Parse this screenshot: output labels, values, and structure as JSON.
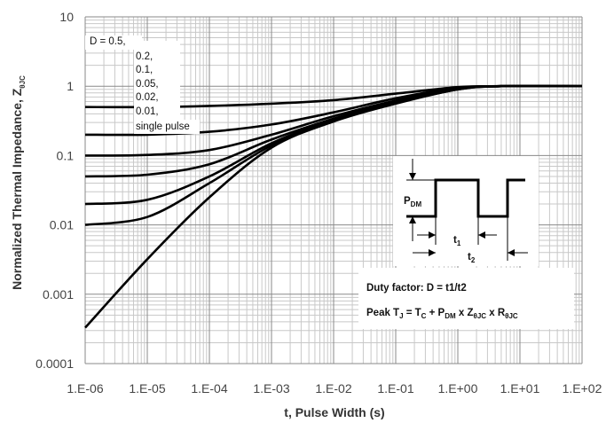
{
  "chart_data": {
    "type": "line",
    "title": "",
    "xlabel": "t, Pulse Width (s)",
    "ylabel": "Normalized Thermal Impedance, Z",
    "ylabel_subscript": "θJC",
    "x_scale": "log",
    "y_scale": "log",
    "xlim": [
      1e-06,
      100
    ],
    "ylim": [
      0.0001,
      10
    ],
    "grid": true,
    "x_ticks": [
      "1.E-06",
      "1.E-05",
      "1.E-04",
      "1.E-03",
      "1.E-02",
      "1.E-01",
      "1.E+00",
      "1.E+01",
      "1.E+02"
    ],
    "y_ticks": [
      "0.0001",
      "0.001",
      "0.01",
      "0.1",
      "1",
      "10"
    ],
    "legend": {
      "placement": "top-left",
      "entries": [
        "D = 0.5,",
        "0.2,",
        "0.1,",
        "0.05,",
        "0.02,",
        "0.01,",
        "single pulse"
      ]
    },
    "series": [
      {
        "duty": 0.5,
        "x": [
          1e-06,
          1e-05,
          0.0001,
          0.001,
          0.01,
          0.1,
          1,
          5,
          100
        ],
        "y": [
          0.5,
          0.5,
          0.52,
          0.56,
          0.63,
          0.78,
          0.97,
          1.0,
          1.0
        ]
      },
      {
        "duty": 0.2,
        "x": [
          1e-06,
          1e-05,
          0.0001,
          0.001,
          0.01,
          0.1,
          1,
          5,
          100
        ],
        "y": [
          0.2,
          0.2,
          0.22,
          0.28,
          0.42,
          0.67,
          0.95,
          1.0,
          1.0
        ]
      },
      {
        "duty": 0.1,
        "x": [
          1e-06,
          1e-05,
          0.0001,
          0.001,
          0.01,
          0.1,
          1,
          5,
          100
        ],
        "y": [
          0.1,
          0.102,
          0.12,
          0.2,
          0.37,
          0.62,
          0.93,
          1.0,
          1.0
        ]
      },
      {
        "duty": 0.05,
        "x": [
          1e-06,
          1e-05,
          0.0001,
          0.001,
          0.01,
          0.1,
          1,
          5,
          100
        ],
        "y": [
          0.05,
          0.053,
          0.075,
          0.17,
          0.34,
          0.6,
          0.92,
          1.0,
          1.0
        ]
      },
      {
        "duty": 0.02,
        "x": [
          1e-06,
          1e-05,
          0.0001,
          0.001,
          0.01,
          0.1,
          1,
          5,
          100
        ],
        "y": [
          0.02,
          0.023,
          0.05,
          0.15,
          0.33,
          0.58,
          0.91,
          1.0,
          1.0
        ]
      },
      {
        "duty": 0.01,
        "x": [
          1e-06,
          1e-05,
          0.0001,
          0.001,
          0.01,
          0.1,
          1,
          5,
          100
        ],
        "y": [
          0.01,
          0.013,
          0.04,
          0.14,
          0.32,
          0.57,
          0.9,
          1.0,
          1.0
        ]
      },
      {
        "duty": 0,
        "x": [
          1e-06,
          1e-05,
          0.0001,
          0.001,
          0.01,
          0.1,
          1,
          5,
          100
        ],
        "y": [
          0.00033,
          0.0032,
          0.025,
          0.13,
          0.31,
          0.56,
          0.9,
          1.0,
          1.0
        ]
      }
    ],
    "inset": {
      "pdm_label": "P",
      "pdm_sub": "DM",
      "t1_label": "t",
      "t1_sub": "1",
      "t2_label": "t",
      "t2_sub": "2",
      "duty_text": "Duty factor: D = t1/t2",
      "peak_parts": [
        {
          "t": "Peak T"
        },
        {
          "s": "J"
        },
        {
          "t": " = T"
        },
        {
          "s": "C"
        },
        {
          "t": " + P"
        },
        {
          "s": "DM"
        },
        {
          "t": " x Z"
        },
        {
          "s": "θJC"
        },
        {
          "t": " x R"
        },
        {
          "s": "θJC"
        }
      ]
    }
  }
}
